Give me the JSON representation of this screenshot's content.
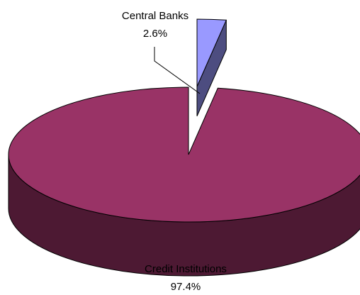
{
  "chart_data": {
    "type": "pie",
    "style": "3d-exploded",
    "title": "",
    "categories": [
      "Central Banks",
      "Credit Institutions"
    ],
    "values": [
      2.6,
      97.4
    ],
    "value_labels": [
      "2.6%",
      "97.4%"
    ],
    "colors": {
      "central_banks_top": "#9999ff",
      "central_banks_side": "#4d4d80",
      "credit_institutions_top": "#993366",
      "credit_institutions_side": "#4d1933",
      "outline": "#000000",
      "leader_line": "#000000"
    },
    "legend": "none",
    "grid": false
  }
}
